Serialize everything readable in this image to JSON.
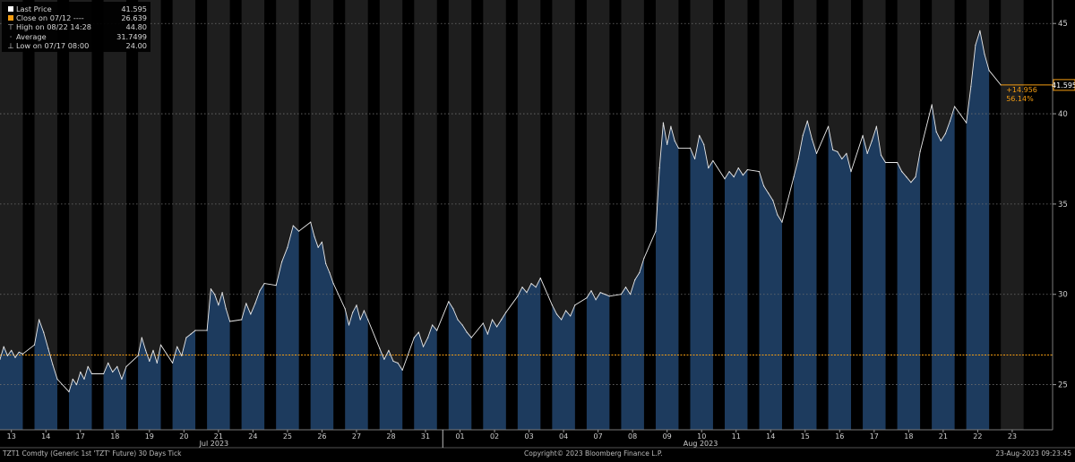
{
  "legend": {
    "items": [
      {
        "label": "Last Price",
        "value": "41.595",
        "marker": "square",
        "color": "#ffffff"
      },
      {
        "label": "Close on 07/12 ----",
        "value": "26.639",
        "marker": "square",
        "color": "#f39c12"
      },
      {
        "label": "High on 08/22 14:28",
        "value": "44.80",
        "marker": "high-tick",
        "color": "#aaaaaa"
      },
      {
        "label": "Average",
        "value": "31.7499",
        "marker": "dot",
        "color": "#aaaaaa"
      },
      {
        "label": "Low on 07/17 08:00",
        "value": "24.00",
        "marker": "low-tick",
        "color": "#aaaaaa"
      }
    ]
  },
  "chart_data": {
    "type": "area",
    "subtype": "tick price",
    "ylim": [
      22.5,
      46.3
    ],
    "y_ticks": [
      25,
      30,
      35,
      40,
      45
    ],
    "grid": true,
    "fill_color": "#1d3b5e",
    "line_color": "#e8e8e8",
    "reference_line": {
      "value": 26.639,
      "color": "#f39c12"
    },
    "last_price": {
      "value": 41.595,
      "label": "41.595",
      "color": "#f39c12"
    },
    "change_labels": [
      "+14.956",
      "56.14%"
    ],
    "x_tick_labels": [
      "13",
      "14",
      "17",
      "18",
      "19",
      "20",
      "21",
      "24",
      "25",
      "26",
      "27",
      "28",
      "31",
      "01",
      "02",
      "03",
      "04",
      "07",
      "08",
      "09",
      "10",
      "11",
      "14",
      "15",
      "16",
      "17",
      "18",
      "21",
      "22",
      "23"
    ],
    "month_labels": [
      "Jul 2023",
      "Aug 2023"
    ],
    "sessions": [
      {
        "label": "13",
        "values": [
          26.4,
          27.1,
          26.6,
          26.9,
          26.5,
          26.8,
          26.7
        ]
      },
      {
        "label": "14",
        "values": [
          27.2,
          28.6,
          27.9,
          27.0,
          26.1,
          25.3
        ]
      },
      {
        "label": "17",
        "values": [
          24.6,
          25.3,
          25.0,
          25.7,
          25.3,
          26.0,
          25.6
        ]
      },
      {
        "label": "18",
        "values": [
          25.6,
          26.2,
          25.7,
          26.0,
          25.3,
          26.0
        ]
      },
      {
        "label": "19",
        "values": [
          26.6,
          27.6,
          26.9,
          26.3,
          26.9,
          26.2,
          27.2
        ]
      },
      {
        "label": "20",
        "values": [
          26.2,
          27.1,
          26.6,
          27.6,
          27.8,
          28.0
        ]
      },
      {
        "label": "21",
        "values": [
          28.0,
          30.3,
          30.0,
          29.4,
          30.1,
          29.2,
          28.5
        ]
      },
      {
        "label": "24",
        "values": [
          28.6,
          29.5,
          28.9,
          29.5,
          30.2,
          30.6
        ]
      },
      {
        "label": "25",
        "values": [
          30.5,
          31.8,
          32.6,
          33.8,
          33.5
        ]
      },
      {
        "label": "26",
        "values": [
          34.0,
          33.2,
          32.6,
          32.9,
          31.7,
          31.2,
          30.6
        ]
      },
      {
        "label": "27",
        "values": [
          29.2,
          28.3,
          29.0,
          29.4,
          28.6,
          29.1,
          28.6
        ]
      },
      {
        "label": "28",
        "values": [
          27.0,
          26.4,
          26.9,
          26.3,
          26.2,
          25.8
        ]
      },
      {
        "label": "31",
        "values": [
          27.6,
          27.9,
          27.1,
          27.6,
          28.3,
          28.0
        ]
      },
      {
        "label": "01",
        "values": [
          29.6,
          29.2,
          28.6,
          28.3,
          27.9,
          27.6
        ]
      },
      {
        "label": "02",
        "values": [
          28.4,
          27.8,
          28.6,
          28.2,
          28.6,
          29.0
        ]
      },
      {
        "label": "03",
        "values": [
          29.9,
          30.4,
          30.1,
          30.6,
          30.4,
          30.9
        ]
      },
      {
        "label": "04",
        "values": [
          29.4,
          28.9,
          28.6,
          29.1,
          28.8,
          29.4
        ]
      },
      {
        "label": "07",
        "values": [
          29.8,
          30.2,
          29.7,
          30.1,
          30.0,
          29.9
        ]
      },
      {
        "label": "08",
        "values": [
          30.0,
          30.4,
          30.0,
          30.8,
          31.2,
          32.0
        ]
      },
      {
        "label": "09",
        "values": [
          33.5,
          37.0,
          39.5,
          38.3,
          39.3,
          38.5,
          38.1
        ]
      },
      {
        "label": "10",
        "values": [
          38.1,
          37.5,
          38.8,
          38.3,
          37.0,
          37.4
        ]
      },
      {
        "label": "11",
        "values": [
          36.4,
          36.8,
          36.5,
          37.0,
          36.6,
          36.9
        ]
      },
      {
        "label": "14",
        "values": [
          36.8,
          36.0,
          35.6,
          35.2,
          34.4,
          34.0
        ]
      },
      {
        "label": "15",
        "values": [
          36.5,
          37.5,
          38.8,
          39.6,
          38.6,
          37.8
        ]
      },
      {
        "label": "16",
        "values": [
          39.3,
          38.0,
          37.9,
          37.5,
          37.8,
          36.8
        ]
      },
      {
        "label": "17",
        "values": [
          38.8,
          37.8,
          38.5,
          39.3,
          37.7,
          37.3
        ]
      },
      {
        "label": "18",
        "values": [
          37.3,
          36.8,
          36.5,
          36.2,
          36.5,
          37.9
        ]
      },
      {
        "label": "21",
        "values": [
          40.5,
          39.0,
          38.5,
          38.9,
          39.6,
          40.4
        ]
      },
      {
        "label": "22",
        "values": [
          39.5,
          41.5,
          43.8,
          44.6,
          43.3,
          42.4
        ]
      },
      {
        "label": "23",
        "values": [
          41.595
        ]
      }
    ]
  },
  "footer": {
    "left": "TZT1 Comdty (Generic 1st 'TZT' Future) 30 Days  Tick",
    "center": "Copyright© 2023 Bloomberg Finance L.P.",
    "right": "23-Aug-2023 09:23:45"
  }
}
